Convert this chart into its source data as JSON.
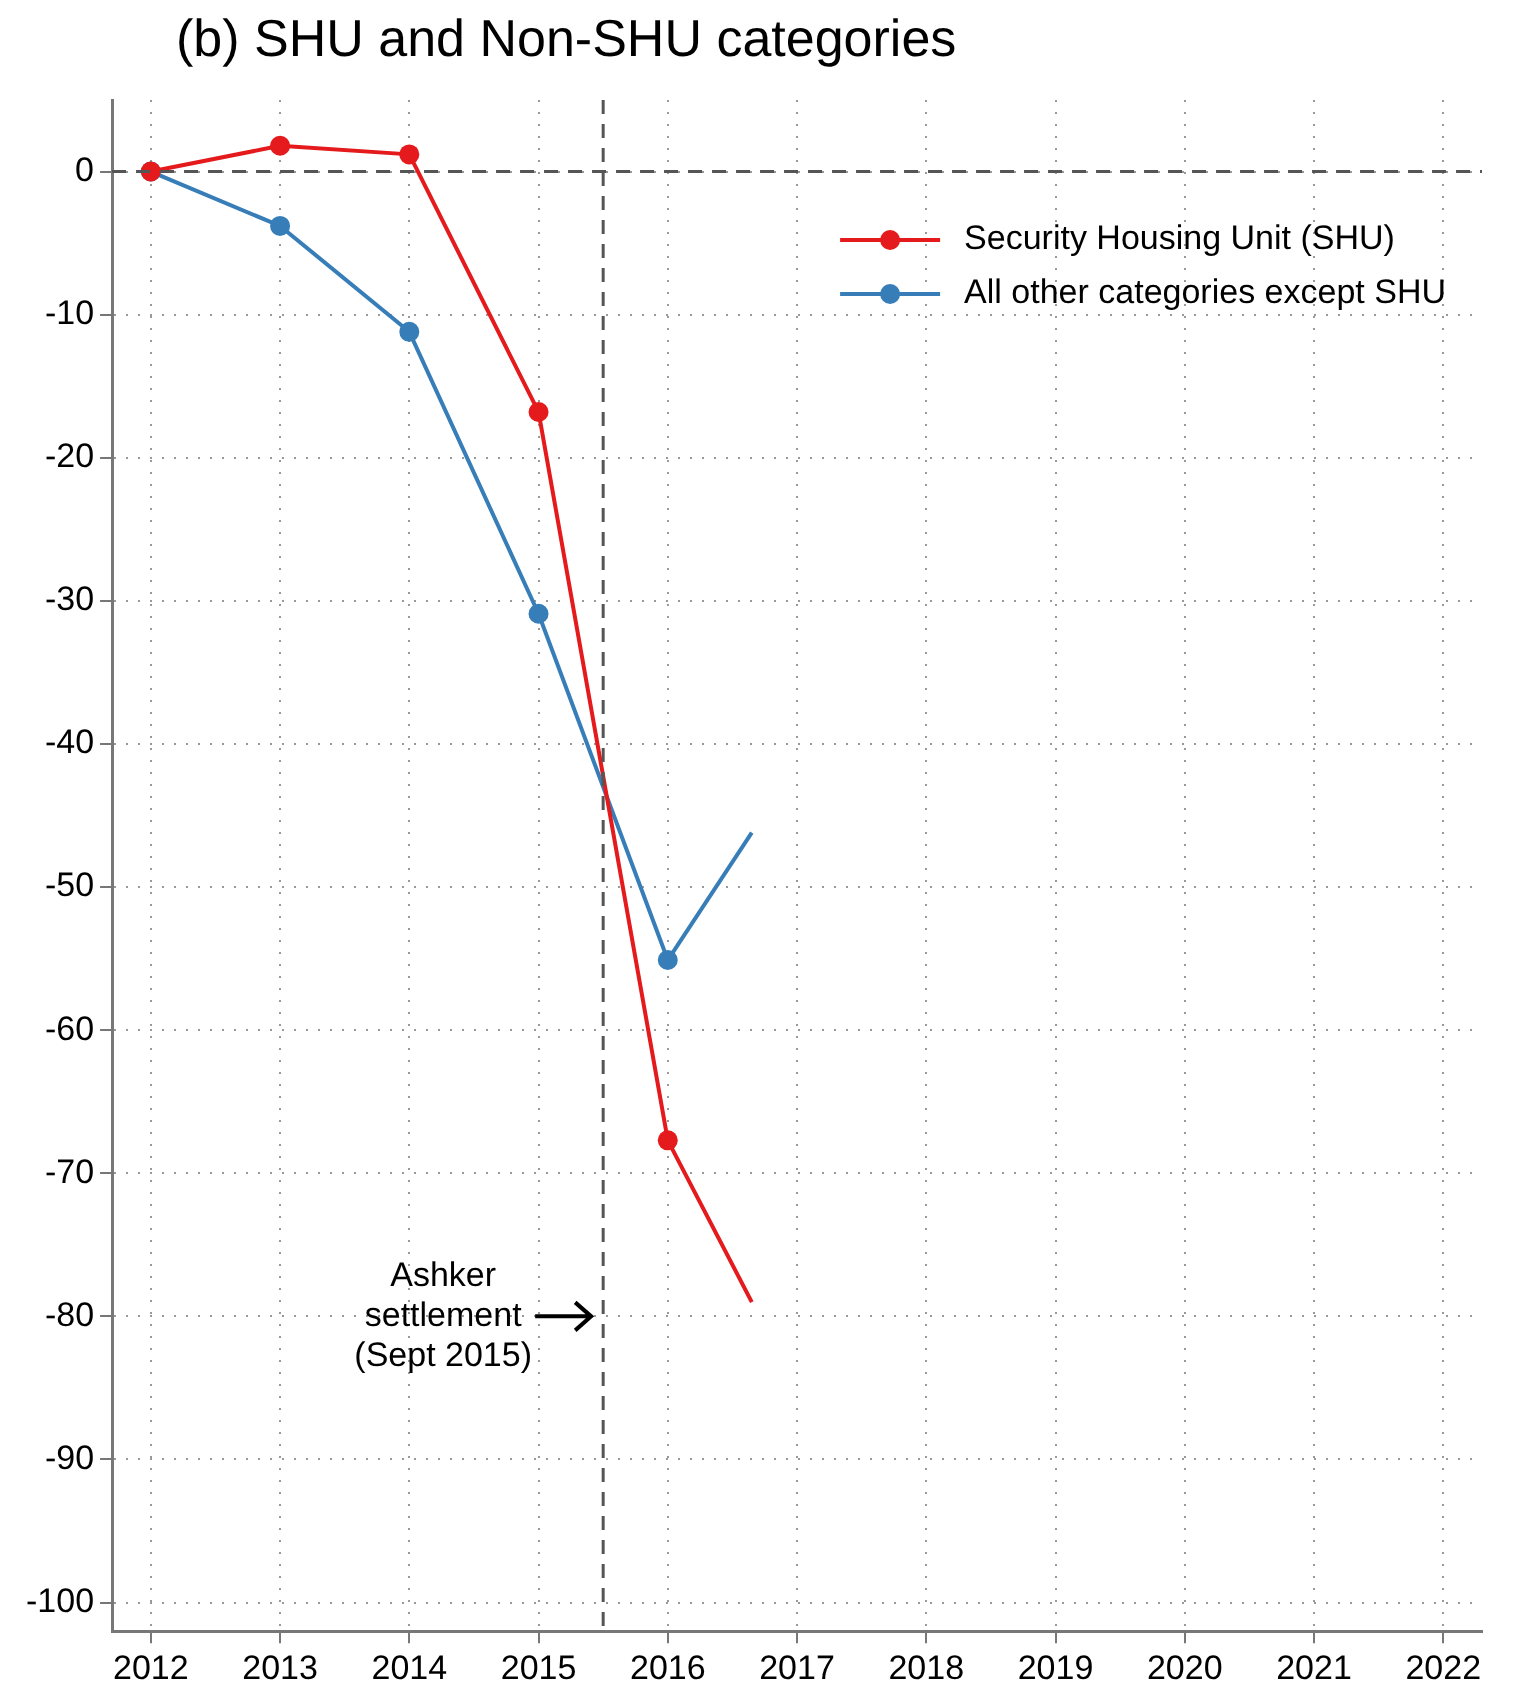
{
  "chart_data": {
    "type": "line",
    "title": "(b) SHU and Non-SHU categories",
    "series": [
      {
        "name": "Security Housing Unit (SHU)",
        "color": "#e41a1c",
        "x": [
          2012,
          2013,
          2014,
          2015,
          2016,
          2016.65
        ],
        "values": [
          0,
          1.8,
          1.2,
          -16.8,
          -67.7,
          -79
        ]
      },
      {
        "name": "All other categories except SHU",
        "color": "#377eb8",
        "x": [
          2012,
          2013,
          2014,
          2015,
          2016,
          2016.65
        ],
        "values": [
          0,
          -3.8,
          -11.2,
          -30.9,
          -55.1,
          -46.2
        ]
      }
    ],
    "xlim": [
      2011.7,
      2022.3
    ],
    "xticks": [
      2012,
      2013,
      2014,
      2015,
      2016,
      2017,
      2018,
      2019,
      2020,
      2021,
      2022
    ],
    "ylim": [
      -102,
      5
    ],
    "yticks": [
      0,
      -10,
      -20,
      -30,
      -40,
      -50,
      -60,
      -70,
      -80,
      -90,
      -100
    ],
    "ref_lines": [
      {
        "axis": "y",
        "value": 0,
        "color": "#555555",
        "line_style": "dashed"
      },
      {
        "axis": "x",
        "value": 2015.5,
        "color": "#555555",
        "line_style": "dashed"
      }
    ],
    "annotations": [
      {
        "text": "Ashker\nsettlement\n(Sept 2015)",
        "x": 2015.5,
        "y": -80
      }
    ],
    "grid": true,
    "legend": "top right",
    "marker": "circle",
    "line_style": "solid"
  }
}
